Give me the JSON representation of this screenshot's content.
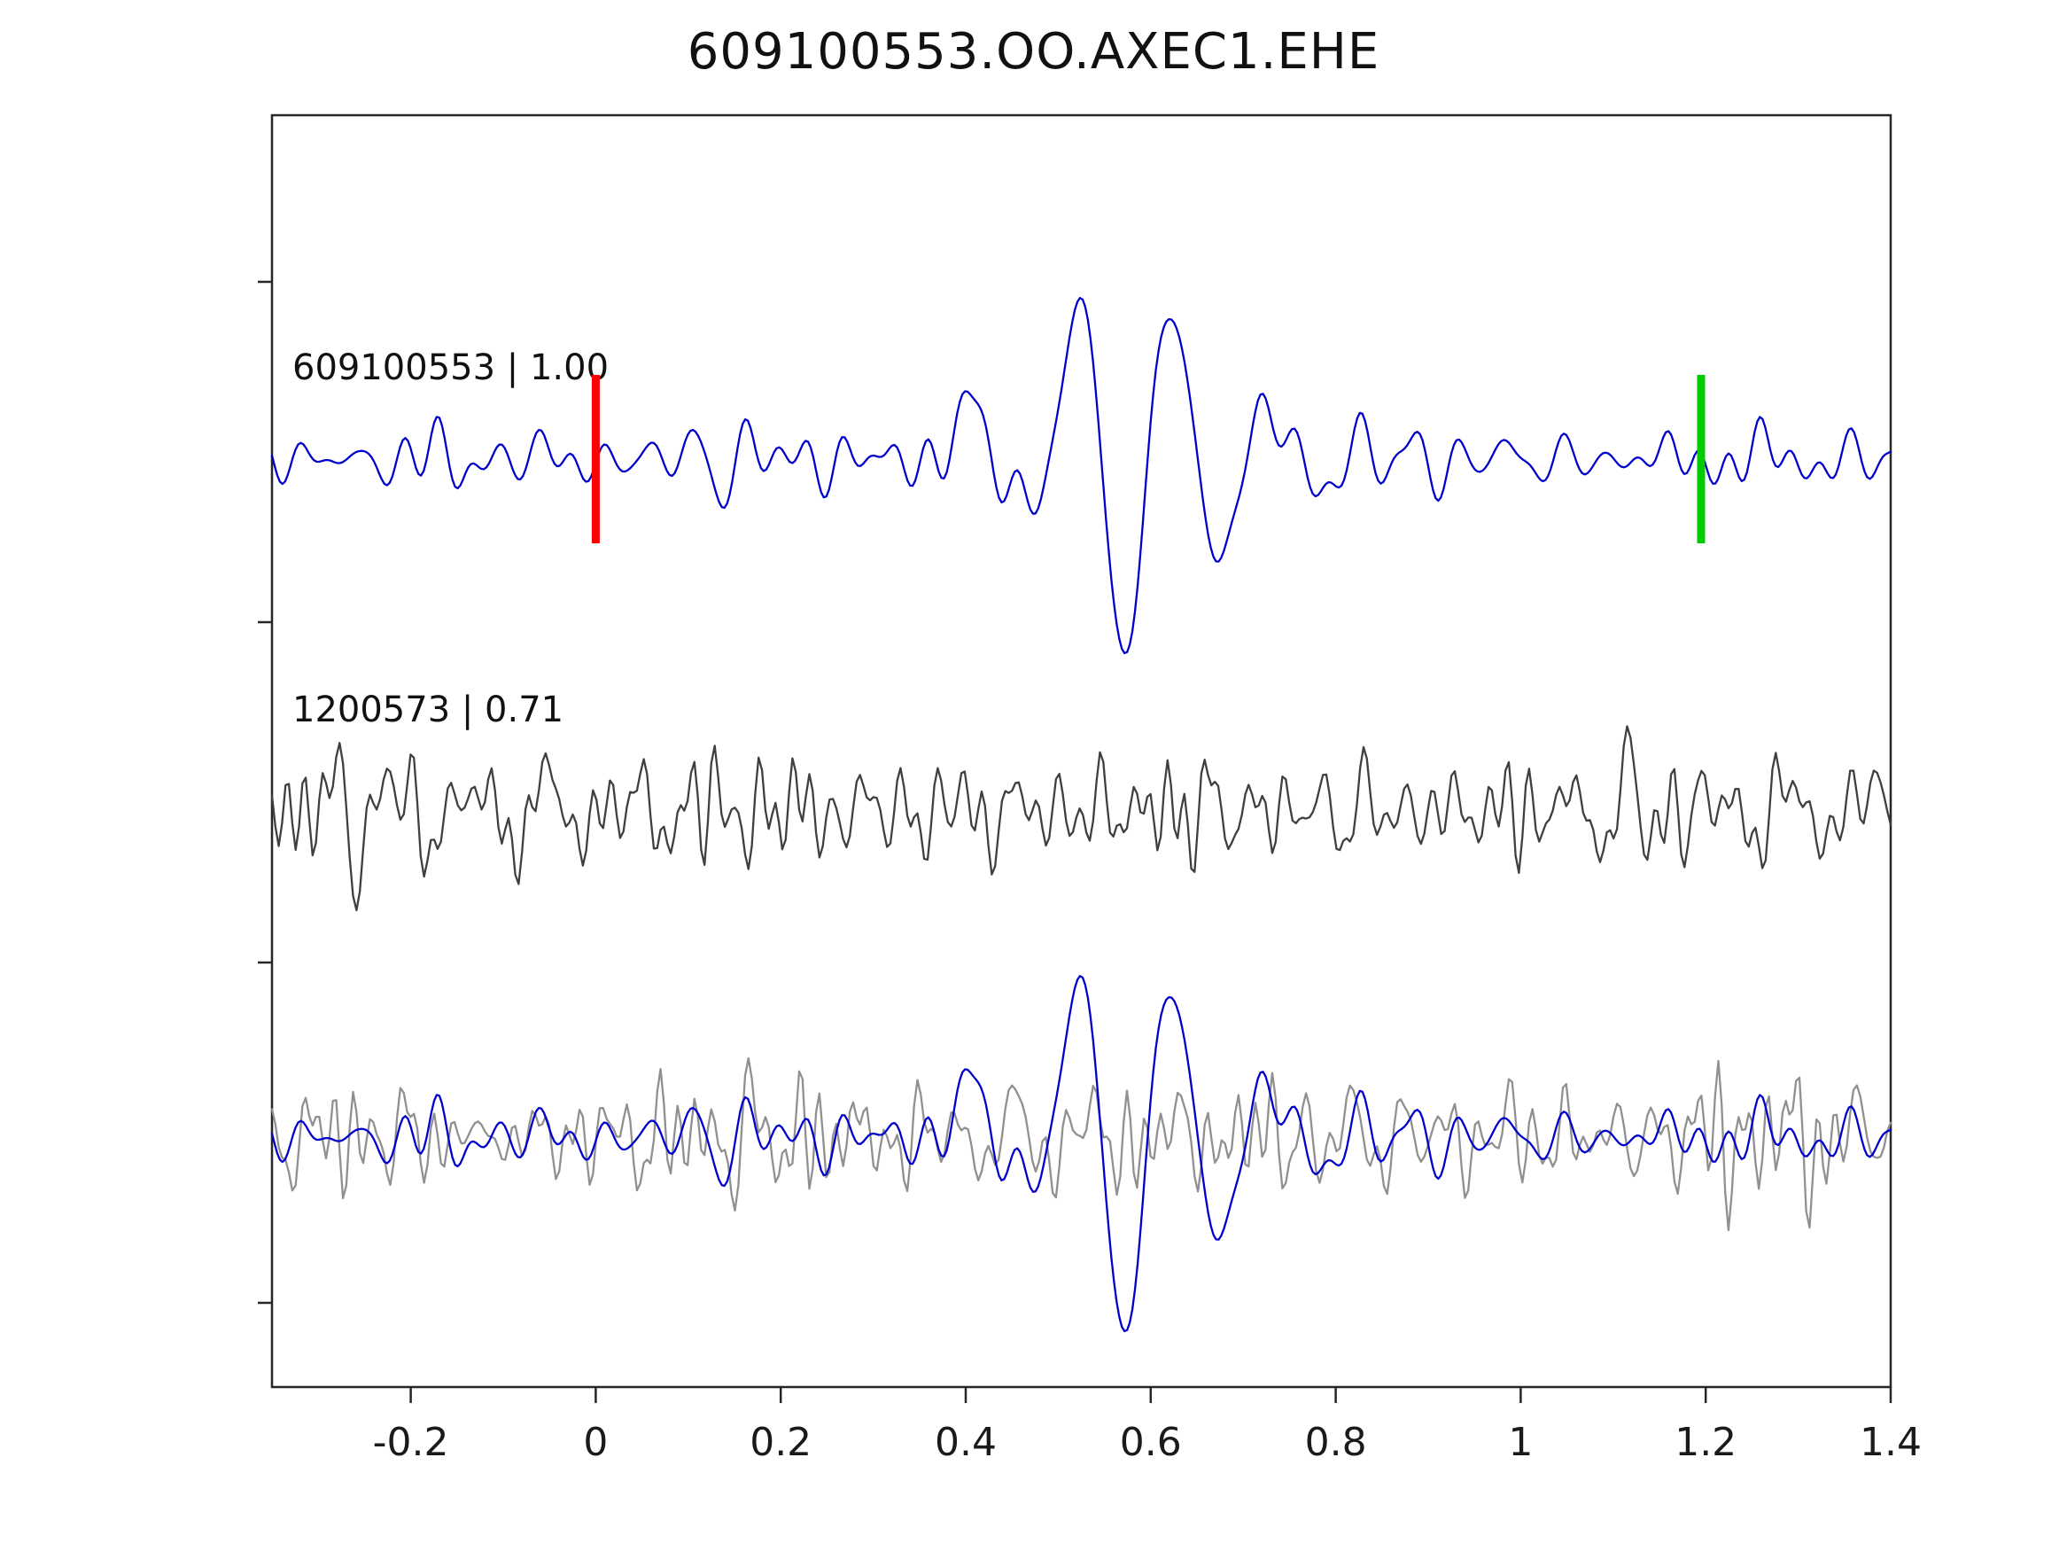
{
  "title": "609100553.OO.AXEC1.EHE",
  "chart_data": {
    "type": "line",
    "title": "609100553.OO.AXEC1.EHE",
    "subtitle": "",
    "xlabel": "",
    "ylabel": "",
    "grid": false,
    "legend": "inline-trace-labels",
    "x_range": [
      -0.35,
      1.4
    ],
    "x_ticks": [
      -0.2,
      0,
      0.2,
      0.4,
      0.6,
      0.8,
      1,
      1.2,
      1.4
    ],
    "x_tick_labels": [
      "-0.2",
      "0",
      "0.2",
      "0.4",
      "0.6",
      "0.8",
      "1",
      "1.2",
      "1.4"
    ],
    "rows": 3,
    "traces": [
      {
        "id": "template-waveform",
        "label": "609100553 | 1.00",
        "color": "#0000cd",
        "row": 0,
        "synthesis": {
          "seed": 11,
          "npts": 620,
          "components": 30,
          "freq_min": 12,
          "freq_max": 60,
          "noise_amp": 55,
          "events": [
            {
              "center": 0.54,
              "sigma_left": 0.06,
              "sigma_right": 0.16,
              "period": 0.105,
              "phase": 2.765,
              "amp": 215
            },
            {
              "center": 0.405,
              "sigma_left": 0.025,
              "sigma_right": 0.035,
              "period": 0.09,
              "phase": 1.5708,
              "amp": 85
            }
          ]
        }
      },
      {
        "id": "detection-waveform",
        "label": "1200573 | 0.71",
        "color": "#3f3f3f",
        "row": 1,
        "synthesis": {
          "seed": 47,
          "npts": 480,
          "components": 45,
          "freq_min": 18,
          "freq_max": 105,
          "noise_amp": 112,
          "events": []
        }
      },
      {
        "id": "overlay-detection-waveform",
        "label": "",
        "color": "#909090",
        "row": 2,
        "synthesis": {
          "seed": 83,
          "npts": 480,
          "components": 45,
          "freq_min": 18,
          "freq_max": 105,
          "noise_amp": 105,
          "events": []
        }
      },
      {
        "id": "overlay-template-waveform",
        "label": "",
        "color": "#0000cd",
        "row": 2,
        "synthesis": {
          "seed": 11,
          "npts": 620,
          "components": 30,
          "freq_min": 12,
          "freq_max": 60,
          "noise_amp": 55,
          "events": [
            {
              "center": 0.54,
              "sigma_left": 0.06,
              "sigma_right": 0.16,
              "period": 0.105,
              "phase": 2.765,
              "amp": 215
            },
            {
              "center": 0.405,
              "sigma_left": 0.025,
              "sigma_right": 0.035,
              "period": 0.09,
              "phase": 1.5708,
              "amp": 85
            }
          ]
        }
      }
    ],
    "markers": [
      {
        "id": "template-start-marker",
        "x": 0,
        "row": 0,
        "color": "#ff0000"
      },
      {
        "id": "template-end-marker",
        "x": 1.195,
        "row": 0,
        "color": "#00cc00"
      }
    ]
  }
}
